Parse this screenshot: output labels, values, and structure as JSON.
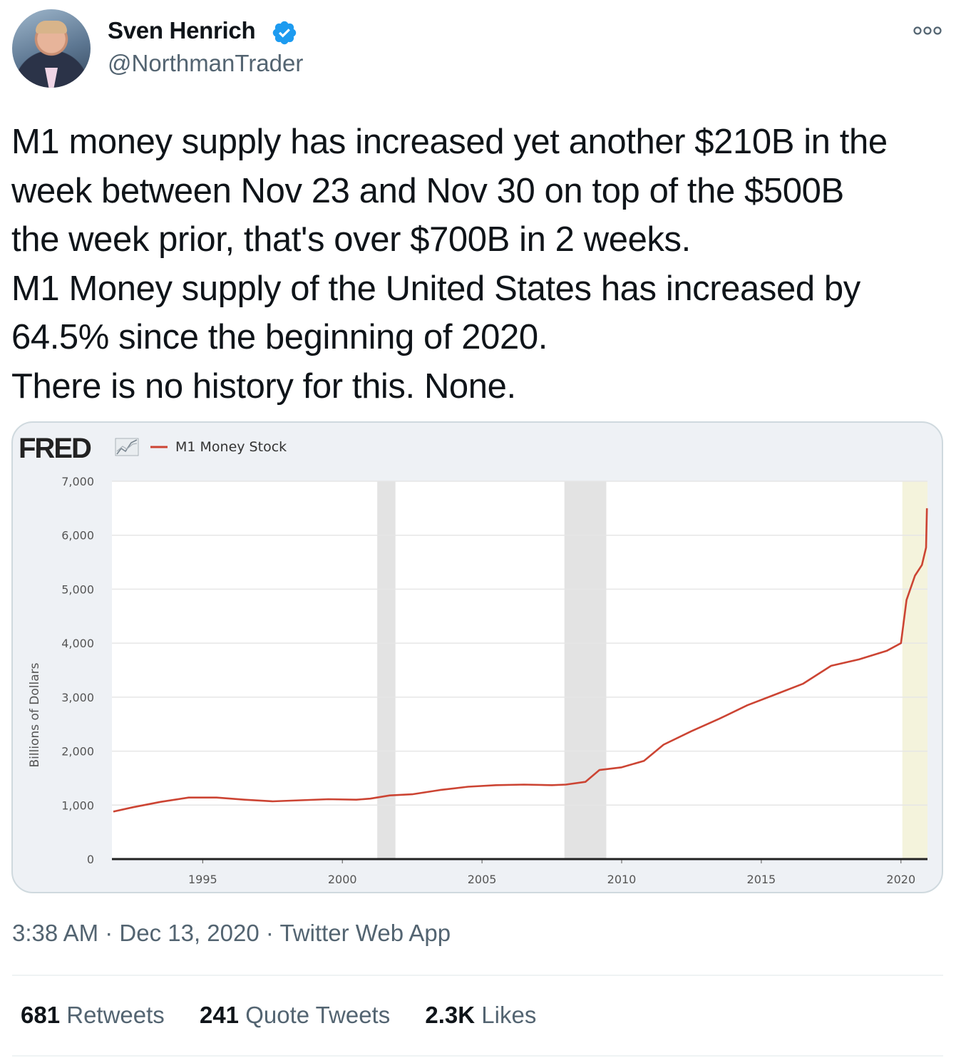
{
  "author": {
    "name": "Sven Henrich",
    "handle": "@NorthmanTrader",
    "verified": true,
    "verified_icon": "verified-badge-icon",
    "accent_color": "#1d9bf0"
  },
  "more_icon": "more-options-icon",
  "tweet_lines": [
    "M1 money supply has increased yet another $210B in the",
    "week between Nov 23 and Nov 30 on top of the $500B",
    "the week prior, that's over $700B in 2 weeks.",
    "M1 Money supply of the United States has increased by",
    "64.5% since the beginning of 2020.",
    "There is no history for this. None."
  ],
  "chart_data": {
    "type": "line",
    "brand": "FRED",
    "series": [
      {
        "name": "M1 Money Stock",
        "color": "#cc4433",
        "x": [
          1991.8,
          1992.5,
          1993.5,
          1994.5,
          1995.5,
          1996.5,
          1997.5,
          1998.5,
          1999.5,
          2000.5,
          2001.0,
          2001.7,
          2002.5,
          2003.5,
          2004.5,
          2005.5,
          2006.5,
          2007.5,
          2008.0,
          2008.7,
          2009.2,
          2010.0,
          2010.8,
          2011.5,
          2012.5,
          2013.5,
          2014.5,
          2015.5,
          2016.5,
          2017.5,
          2018.5,
          2019.5,
          2020.0,
          2020.2,
          2020.5,
          2020.75,
          2020.9,
          2020.93
        ],
        "values": [
          880,
          960,
          1060,
          1140,
          1140,
          1100,
          1070,
          1090,
          1110,
          1100,
          1120,
          1180,
          1200,
          1280,
          1340,
          1370,
          1380,
          1370,
          1380,
          1430,
          1650,
          1700,
          1820,
          2120,
          2370,
          2600,
          2850,
          3050,
          3250,
          3580,
          3700,
          3860,
          4000,
          4800,
          5250,
          5450,
          5770,
          6500
        ]
      }
    ],
    "ylabel": "Billions of Dollars",
    "ylim": [
      0,
      7000
    ],
    "xlim": [
      1991.75,
      2020.95
    ],
    "y_ticks": [
      "0",
      "1,000",
      "2,000",
      "3,000",
      "4,000",
      "5,000",
      "6,000",
      "7,000"
    ],
    "x_ticks": [
      "1995",
      "2000",
      "2005",
      "2010",
      "2015",
      "2020"
    ],
    "recessions": [
      [
        2001.25,
        2001.9
      ],
      [
        2007.95,
        2009.45
      ]
    ],
    "highlight": [
      2020.05,
      2020.95
    ],
    "grid": true
  },
  "meta": {
    "timestamp": "3:38 AM · Dec 13, 2020 · Twitter Web App"
  },
  "stats": {
    "retweets_count": "681",
    "retweets_label": "Retweets",
    "quotes_count": "241",
    "quotes_label": "Quote Tweets",
    "likes_count": "2.3K",
    "likes_label": "Likes"
  }
}
